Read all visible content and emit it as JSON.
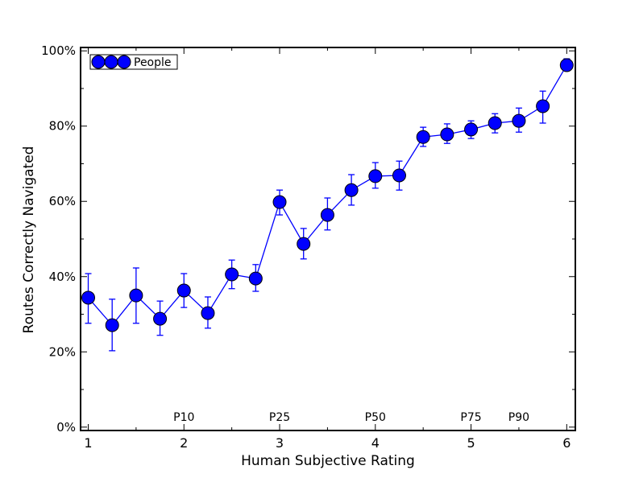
{
  "chart_data": {
    "type": "line",
    "title": "",
    "xlabel": "Human Subjective Rating",
    "ylabel": "Routes Correctly Navigated",
    "xlim": [
      0.92,
      6.09
    ],
    "ylim": [
      -0.9,
      100.9
    ],
    "xticks": [
      1,
      2,
      3,
      4,
      5,
      6
    ],
    "xtick_labels": [
      "1",
      "2",
      "3",
      "4",
      "5",
      "6"
    ],
    "yticks": [
      0,
      20,
      40,
      60,
      80,
      100
    ],
    "ytick_labels": [
      "0%",
      "20%",
      "40%",
      "60%",
      "80%",
      "100%"
    ],
    "grid": false,
    "legend": {
      "position": "top-left",
      "entries": [
        "People"
      ]
    },
    "color": "#0000ff",
    "series": [
      {
        "name": "People",
        "x": [
          1,
          1.25,
          1.5,
          1.75,
          2,
          2.25,
          2.5,
          2.75,
          3,
          3.25,
          3.5,
          3.75,
          4,
          4.25,
          4.5,
          4.75,
          5,
          5.25,
          5.5,
          5.75,
          6
        ],
        "y": [
          34.4,
          27.1,
          35.0,
          28.8,
          36.3,
          30.3,
          40.6,
          39.5,
          59.8,
          48.7,
          56.4,
          63.0,
          66.7,
          66.9,
          77.1,
          77.8,
          79.1,
          80.8,
          81.4,
          85.3,
          96.2
        ],
        "err_low": [
          27.6,
          20.3,
          27.6,
          24.4,
          31.8,
          26.3,
          36.8,
          36.1,
          56.4,
          44.7,
          52.4,
          59.0,
          63.5,
          63.0,
          74.6,
          75.4,
          76.7,
          78.2,
          78.4,
          80.8,
          94.7
        ],
        "err_high": [
          40.8,
          34.0,
          42.3,
          33.5,
          40.8,
          34.6,
          44.4,
          43.2,
          63.0,
          52.8,
          60.9,
          67.1,
          70.3,
          70.7,
          79.7,
          80.6,
          81.4,
          83.3,
          84.8,
          89.3,
          97.9
        ]
      }
    ],
    "annotations": [
      {
        "text": "P10",
        "x": 2,
        "y": 1.7
      },
      {
        "text": "P25",
        "x": 3,
        "y": 1.7
      },
      {
        "text": "P50",
        "x": 4,
        "y": 1.7
      },
      {
        "text": "P75",
        "x": 5,
        "y": 1.7
      },
      {
        "text": "P90",
        "x": 5.5,
        "y": 1.7
      }
    ]
  }
}
